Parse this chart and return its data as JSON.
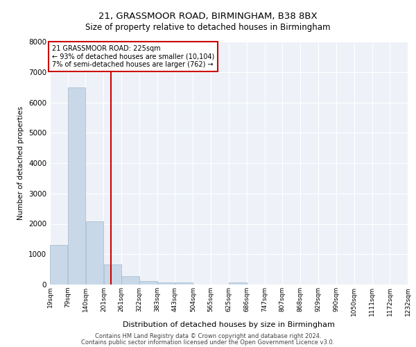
{
  "title1": "21, GRASSMOOR ROAD, BIRMINGHAM, B38 8BX",
  "title2": "Size of property relative to detached houses in Birmingham",
  "xlabel": "Distribution of detached houses by size in Birmingham",
  "ylabel": "Number of detached properties",
  "annotation_line1": "21 GRASSMOOR ROAD: 225sqm",
  "annotation_line2": "← 93% of detached houses are smaller (10,104)",
  "annotation_line3": "7% of semi-detached houses are larger (762) →",
  "property_size_sqm": 225,
  "bin_edges": [
    19,
    79,
    140,
    201,
    261,
    322,
    383,
    443,
    504,
    565,
    625,
    686,
    747,
    807,
    868,
    929,
    990,
    1050,
    1111,
    1172,
    1232
  ],
  "bar_heights": [
    1310,
    6490,
    2075,
    660,
    280,
    120,
    70,
    60,
    0,
    0,
    60,
    0,
    0,
    0,
    0,
    0,
    0,
    0,
    0,
    0
  ],
  "bar_color": "#c8d8e8",
  "bar_edge_color": "#a0b8cc",
  "vline_color": "#cc0000",
  "vline_x": 225,
  "annotation_box_color": "#cc0000",
  "background_color": "#eef2f8",
  "grid_color": "#ffffff",
  "fig_background": "#ffffff",
  "ylim": [
    0,
    8000
  ],
  "yticks": [
    0,
    1000,
    2000,
    3000,
    4000,
    5000,
    6000,
    7000,
    8000
  ],
  "footer1": "Contains HM Land Registry data © Crown copyright and database right 2024.",
  "footer2": "Contains public sector information licensed under the Open Government Licence v3.0."
}
